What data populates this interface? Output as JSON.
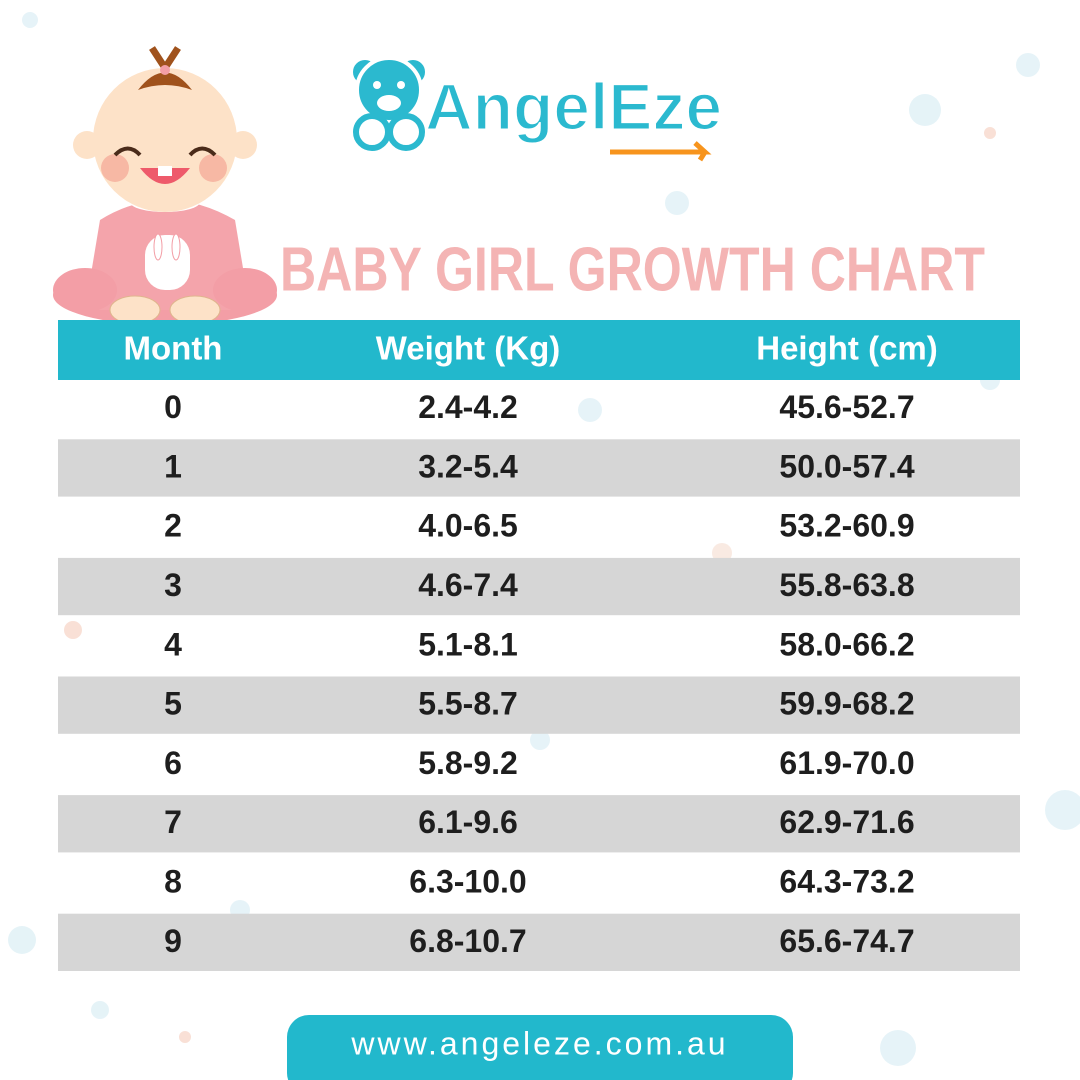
{
  "brand": "AngelEze",
  "title": "BABY GIRL GROWTH CHART",
  "table": {
    "columns": [
      "Month",
      "Weight (Kg)",
      "Height (cm)"
    ],
    "rows": [
      [
        "0",
        "2.4-4.2",
        "45.6-52.7"
      ],
      [
        "1",
        "3.2-5.4",
        "50.0-57.4"
      ],
      [
        "2",
        "4.0-6.5",
        "53.2-60.9"
      ],
      [
        "3",
        "4.6-7.4",
        "55.8-63.8"
      ],
      [
        "4",
        "5.1-8.1",
        "58.0-66.2"
      ],
      [
        "5",
        "5.5-8.7",
        "59.9-68.2"
      ],
      [
        "6",
        "5.8-9.2",
        "61.9-70.0"
      ],
      [
        "7",
        "6.1-9.6",
        "62.9-71.6"
      ],
      [
        "8",
        "6.3-10.0",
        "64.3-73.2"
      ],
      [
        "9",
        "6.8-10.7",
        "65.6-74.7"
      ]
    ]
  },
  "footer": {
    "url": "www.angeleze.com.au"
  }
}
